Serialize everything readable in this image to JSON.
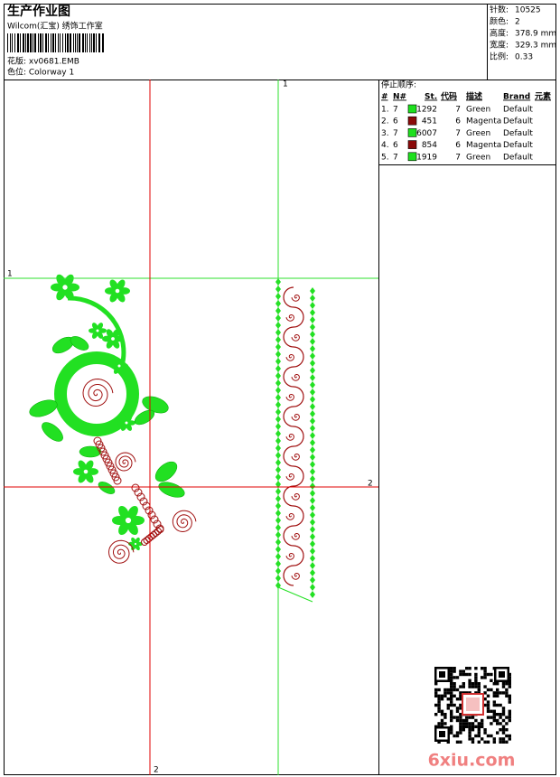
{
  "header": {
    "title": "生产作业图",
    "subtitle": "Wilcom(汇宝) 绣饰工作室",
    "design": "花版: xv0681.EMB",
    "colorway": "色位: Colorway 1"
  },
  "stats": [
    {
      "label": "针数:",
      "value": "10525"
    },
    {
      "label": "颜色:",
      "value": "2"
    },
    {
      "label": "高度:",
      "value": "378.9 mm"
    },
    {
      "label": "宽度:",
      "value": "329.3 mm"
    },
    {
      "label": "比例:",
      "value": "0.33"
    }
  ],
  "stop_sequence": {
    "title": "停止顺序:",
    "columns": [
      "#",
      "N#",
      "St.",
      "代码",
      "描述",
      "Brand",
      "元素"
    ],
    "rows": [
      {
        "index": "1.",
        "needle": "7",
        "color": "#1ee01e",
        "stitches": "1292",
        "code": "7",
        "description": "Green",
        "brand": "Default"
      },
      {
        "index": "2.",
        "needle": "6",
        "color": "#8b0a0a",
        "stitches": "451",
        "code": "6",
        "description": "Magenta",
        "brand": "Default"
      },
      {
        "index": "3.",
        "needle": "7",
        "color": "#1ee01e",
        "stitches": "6007",
        "code": "7",
        "description": "Green",
        "brand": "Default"
      },
      {
        "index": "4.",
        "needle": "6",
        "color": "#8b0a0a",
        "stitches": "854",
        "code": "6",
        "description": "Magenta",
        "brand": "Default"
      },
      {
        "index": "5.",
        "needle": "7",
        "color": "#1ee01e",
        "stitches": "1919",
        "code": "7",
        "description": "Green",
        "brand": "Default"
      }
    ]
  },
  "guides": {
    "green_top": "1",
    "green_left": "1",
    "red_right": "2",
    "red_bottom": "2"
  },
  "watermark": "6xiu.com"
}
